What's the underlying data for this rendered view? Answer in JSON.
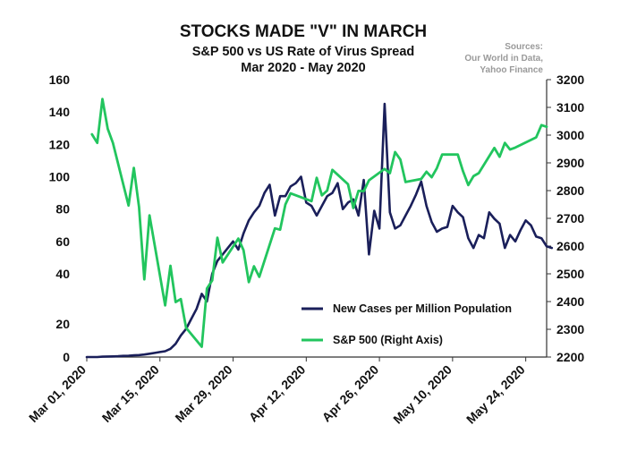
{
  "chart_data": {
    "type": "line",
    "title": "STOCKS MADE \"V\" IN MARCH",
    "subtitle": "S&P 500 vs US Rate of Virus Spread",
    "subtitle2": "Mar 2020 - May 2020",
    "sources": [
      "Sources:",
      "Our World in Data,",
      "Yahoo Finance"
    ],
    "x_tick_labels": [
      "Mar 01, 2020",
      "Mar 15, 2020",
      "Mar 29, 2020",
      "Apr 12, 2020",
      "Apr 26, 2020",
      "May 10, 2020",
      "May 24, 2020"
    ],
    "x_tick_dates": [
      "2020-03-01",
      "2020-03-15",
      "2020-03-29",
      "2020-04-12",
      "2020-04-26",
      "2020-05-10",
      "2020-05-24"
    ],
    "xlim": [
      "2020-03-01",
      "2020-05-28"
    ],
    "left_axis": {
      "ylim": [
        0,
        160
      ],
      "ticks": [
        0,
        20,
        40,
        60,
        80,
        100,
        120,
        140,
        160
      ]
    },
    "right_axis": {
      "ylim": [
        2200,
        3200
      ],
      "ticks": [
        2200,
        2300,
        2400,
        2500,
        2600,
        2700,
        2800,
        2900,
        3000,
        3100,
        3200
      ]
    },
    "legend_position": "bottom-right",
    "series": [
      {
        "name": "New Cases per Million Population",
        "axis": "left",
        "color": "#1a1f5a",
        "points": [
          [
            "2020-03-01",
            0
          ],
          [
            "2020-03-02",
            0
          ],
          [
            "2020-03-03",
            0
          ],
          [
            "2020-03-04",
            0.2
          ],
          [
            "2020-03-05",
            0.3
          ],
          [
            "2020-03-06",
            0.4
          ],
          [
            "2020-03-07",
            0.5
          ],
          [
            "2020-03-08",
            0.7
          ],
          [
            "2020-03-09",
            0.8
          ],
          [
            "2020-03-10",
            1
          ],
          [
            "2020-03-11",
            1.2
          ],
          [
            "2020-03-12",
            1.5
          ],
          [
            "2020-03-13",
            2
          ],
          [
            "2020-03-14",
            2.5
          ],
          [
            "2020-03-15",
            3
          ],
          [
            "2020-03-16",
            3.5
          ],
          [
            "2020-03-17",
            5
          ],
          [
            "2020-03-18",
            8
          ],
          [
            "2020-03-19",
            13
          ],
          [
            "2020-03-20",
            17
          ],
          [
            "2020-03-21",
            22
          ],
          [
            "2020-03-22",
            26
          ],
          [
            "2020-03-23",
            32
          ],
          [
            "2020-03-24",
            29
          ],
          [
            "2020-03-25",
            40
          ],
          [
            "2020-03-26",
            48
          ],
          [
            "2020-03-27",
            52
          ],
          [
            "2020-03-28",
            56
          ],
          [
            "2020-03-29",
            60
          ],
          [
            "2020-03-30",
            55
          ],
          [
            "2020-03-31",
            65
          ],
          [
            "2020-04-01",
            73
          ],
          [
            "2020-04-02",
            78
          ],
          [
            "2020-04-03",
            82
          ],
          [
            "2020-04-04",
            90
          ],
          [
            "2020-04-05",
            95
          ],
          [
            "2020-04-06",
            76
          ],
          [
            "2020-04-07",
            88
          ],
          [
            "2020-04-08",
            88
          ],
          [
            "2020-04-09",
            94
          ],
          [
            "2020-04-10",
            96
          ],
          [
            "2020-04-11",
            100
          ],
          [
            "2020-04-12",
            84
          ],
          [
            "2020-04-13",
            82
          ],
          [
            "2020-04-14",
            76
          ],
          [
            "2020-04-15",
            82
          ],
          [
            "2020-04-16",
            88
          ],
          [
            "2020-04-17",
            90
          ],
          [
            "2020-04-18",
            96
          ],
          [
            "2020-04-19",
            80
          ],
          [
            "2020-04-20",
            84
          ],
          [
            "2020-04-21",
            86
          ],
          [
            "2020-04-22",
            76
          ],
          [
            "2020-04-23",
            98
          ],
          [
            "2020-04-24",
            52
          ],
          [
            "2020-04-25",
            79
          ],
          [
            "2020-04-26",
            68
          ],
          [
            "2020-04-27",
            145
          ],
          [
            "2020-04-28",
            78
          ],
          [
            "2020-04-29",
            68
          ],
          [
            "2020-04-30",
            70
          ],
          [
            "2020-05-01",
            76
          ],
          [
            "2020-05-02",
            82
          ],
          [
            "2020-05-03",
            89
          ],
          [
            "2020-05-04",
            97
          ],
          [
            "2020-05-05",
            82
          ],
          [
            "2020-05-06",
            72
          ],
          [
            "2020-05-07",
            66
          ],
          [
            "2020-05-08",
            68
          ],
          [
            "2020-05-09",
            69
          ],
          [
            "2020-05-10",
            82
          ],
          [
            "2020-05-11",
            78
          ],
          [
            "2020-05-12",
            75
          ],
          [
            "2020-05-13",
            62
          ],
          [
            "2020-05-14",
            56
          ],
          [
            "2020-05-15",
            64
          ],
          [
            "2020-05-16",
            62
          ],
          [
            "2020-05-17",
            78
          ],
          [
            "2020-05-18",
            74
          ],
          [
            "2020-05-19",
            71
          ],
          [
            "2020-05-20",
            56
          ],
          [
            "2020-05-21",
            64
          ],
          [
            "2020-05-22",
            60
          ],
          [
            "2020-05-23",
            67
          ],
          [
            "2020-05-24",
            73
          ],
          [
            "2020-05-25",
            70
          ],
          [
            "2020-05-26",
            63
          ],
          [
            "2020-05-27",
            62
          ],
          [
            "2020-05-28",
            57
          ],
          [
            "2020-05-29",
            56
          ]
        ]
      },
      {
        "name": "S&P 500 (Right Axis)",
        "axis": "right",
        "color": "#22c55e",
        "points": [
          [
            "2020-03-02",
            3003
          ],
          [
            "2020-03-03",
            2972
          ],
          [
            "2020-03-04",
            3130
          ],
          [
            "2020-03-05",
            3023
          ],
          [
            "2020-03-06",
            2972
          ],
          [
            "2020-03-09",
            2746
          ],
          [
            "2020-03-10",
            2882
          ],
          [
            "2020-03-11",
            2741
          ],
          [
            "2020-03-12",
            2480
          ],
          [
            "2020-03-13",
            2711
          ],
          [
            "2020-03-16",
            2386
          ],
          [
            "2020-03-17",
            2529
          ],
          [
            "2020-03-18",
            2398
          ],
          [
            "2020-03-19",
            2409
          ],
          [
            "2020-03-20",
            2305
          ],
          [
            "2020-03-23",
            2237
          ],
          [
            "2020-03-24",
            2447
          ],
          [
            "2020-03-25",
            2476
          ],
          [
            "2020-03-26",
            2630
          ],
          [
            "2020-03-27",
            2541
          ],
          [
            "2020-03-30",
            2627
          ],
          [
            "2020-03-31",
            2585
          ],
          [
            "2020-04-01",
            2470
          ],
          [
            "2020-04-02",
            2527
          ],
          [
            "2020-04-03",
            2489
          ],
          [
            "2020-04-06",
            2664
          ],
          [
            "2020-04-07",
            2659
          ],
          [
            "2020-04-08",
            2750
          ],
          [
            "2020-04-09",
            2790
          ],
          [
            "2020-04-13",
            2762
          ],
          [
            "2020-04-14",
            2846
          ],
          [
            "2020-04-15",
            2783
          ],
          [
            "2020-04-16",
            2800
          ],
          [
            "2020-04-17",
            2875
          ],
          [
            "2020-04-20",
            2823
          ],
          [
            "2020-04-21",
            2737
          ],
          [
            "2020-04-22",
            2799
          ],
          [
            "2020-04-23",
            2798
          ],
          [
            "2020-04-24",
            2837
          ],
          [
            "2020-04-27",
            2878
          ],
          [
            "2020-04-28",
            2863
          ],
          [
            "2020-04-29",
            2939
          ],
          [
            "2020-04-30",
            2912
          ],
          [
            "2020-05-01",
            2831
          ],
          [
            "2020-05-04",
            2842
          ],
          [
            "2020-05-05",
            2868
          ],
          [
            "2020-05-06",
            2848
          ],
          [
            "2020-05-07",
            2881
          ],
          [
            "2020-05-08",
            2930
          ],
          [
            "2020-05-11",
            2930
          ],
          [
            "2020-05-12",
            2870
          ],
          [
            "2020-05-13",
            2820
          ],
          [
            "2020-05-14",
            2852
          ],
          [
            "2020-05-15",
            2863
          ],
          [
            "2020-05-18",
            2954
          ],
          [
            "2020-05-19",
            2922
          ],
          [
            "2020-05-20",
            2972
          ],
          [
            "2020-05-21",
            2948
          ],
          [
            "2020-05-22",
            2955
          ],
          [
            "2020-05-26",
            2992
          ],
          [
            "2020-05-27",
            3036
          ],
          [
            "2020-05-28",
            3030
          ]
        ]
      }
    ]
  }
}
